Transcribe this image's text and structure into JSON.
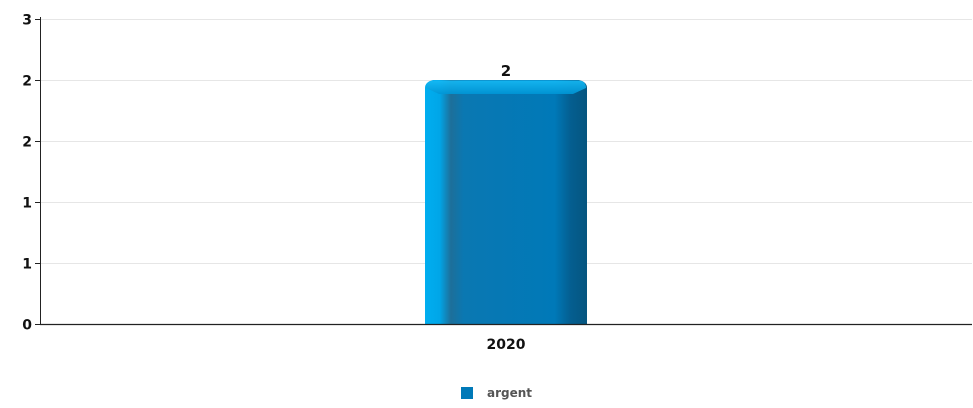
{
  "chart_data": {
    "type": "bar",
    "categories": [
      "2020"
    ],
    "series": [
      {
        "name": "argent",
        "values": [
          2
        ],
        "color": "#0079b8"
      }
    ],
    "data_labels": [
      "2"
    ],
    "y_ticks": [
      {
        "value": 0,
        "label": "0"
      },
      {
        "value": 0.5,
        "label": "1"
      },
      {
        "value": 1,
        "label": "1"
      },
      {
        "value": 1.5,
        "label": "2"
      },
      {
        "value": 2,
        "label": "2"
      },
      {
        "value": 2.5,
        "label": "3"
      }
    ],
    "ylim": [
      0,
      2.5
    ],
    "grid": true,
    "legend_position": "bottom-center"
  }
}
